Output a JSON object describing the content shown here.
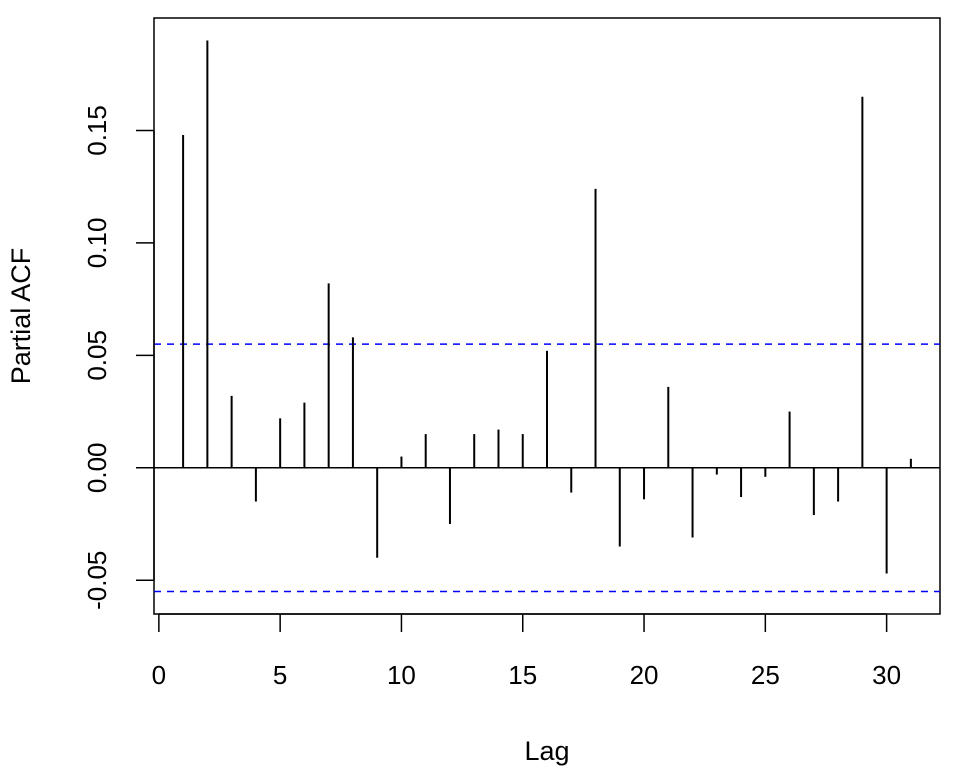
{
  "chart_data": {
    "type": "bar",
    "title": "",
    "xlabel": "Lag",
    "ylabel": "Partial ACF",
    "xlim": [
      -0.2,
      32.2
    ],
    "ylim": [
      -0.065,
      0.2
    ],
    "x_ticks": [
      0,
      5,
      10,
      15,
      20,
      25,
      30
    ],
    "y_ticks": [
      -0.05,
      0.0,
      0.05,
      0.1,
      0.15
    ],
    "y_tick_labels": [
      "-0.05",
      "0.00",
      "0.05",
      "0.10",
      "0.15"
    ],
    "grid": false,
    "confidence_bounds": [
      0.055,
      -0.055
    ],
    "colors": {
      "bars": "#000000",
      "bounds": "#0000ff",
      "axes": "#000000"
    },
    "lags": [
      1,
      2,
      3,
      4,
      5,
      6,
      7,
      8,
      9,
      10,
      11,
      12,
      13,
      14,
      15,
      16,
      17,
      18,
      19,
      20,
      21,
      22,
      23,
      24,
      25,
      26,
      27,
      28,
      29,
      30,
      31
    ],
    "values": [
      0.148,
      0.19,
      0.032,
      -0.015,
      0.022,
      0.029,
      0.082,
      0.058,
      -0.04,
      0.005,
      0.015,
      -0.025,
      0.015,
      0.017,
      0.015,
      0.052,
      -0.011,
      0.124,
      -0.035,
      -0.014,
      0.036,
      -0.031,
      -0.003,
      -0.013,
      -0.004,
      0.025,
      -0.021,
      -0.015,
      0.165,
      -0.047,
      0.004
    ]
  }
}
